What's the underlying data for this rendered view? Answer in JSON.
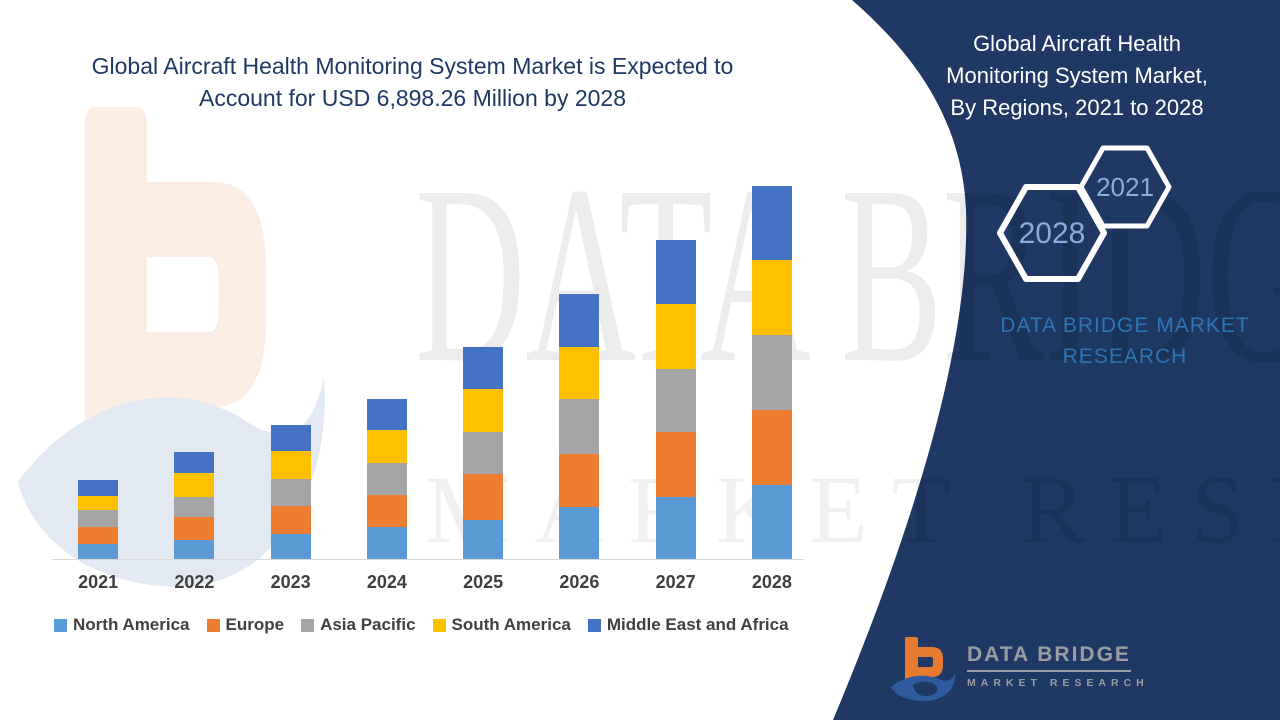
{
  "header": {
    "line1": "Global Aircraft Health Monitoring System Market is Expected to",
    "line2": "Account for USD 6,898.26 Million by 2028"
  },
  "panel": {
    "title_line1": "Global Aircraft Health",
    "title_line2": "Monitoring System Market,",
    "title_line3": "By Regions,  2021 to 2028",
    "hexagon_back_label": "2028",
    "hexagon_front_label": "2021",
    "brand_line1": "DATA BRIDGE MARKET",
    "brand_line2": "RESEARCH",
    "background_color": "#1f3864",
    "hexagon_text_color": "#8eaadb",
    "brand_text_color": "#2e75b6"
  },
  "watermark": {
    "line1": "DATA BRIDGE",
    "line2": "MARKET RESEARCH"
  },
  "footer_logo": {
    "name": "DATA BRIDGE",
    "tagline": "MARKET RESEARCH"
  },
  "chart_data": {
    "type": "bar",
    "stacked": true,
    "title": "Global Aircraft Health Monitoring System Market is Expected to Account for USD 6,898.26 Million by 2028",
    "unit": "USD Million",
    "categories": [
      "2021",
      "2022",
      "2023",
      "2024",
      "2025",
      "2026",
      "2027",
      "2028"
    ],
    "series": [
      {
        "name": "North America",
        "color": "#5B9BD5",
        "values": [
          295,
          374,
          485,
          614,
          745,
          971,
          1167,
          1382
        ]
      },
      {
        "name": "Europe",
        "color": "#ED7D31",
        "values": [
          319,
          424,
          511,
          579,
          840,
          982,
          1198,
          1383
        ]
      },
      {
        "name": "Asia Pacific",
        "color": "#A5A5A5",
        "values": [
          313,
          369,
          492,
          601,
          769,
          1014,
          1167,
          1383
        ]
      },
      {
        "name": "South America",
        "color": "#FFC000",
        "values": [
          258,
          437,
          522,
          597,
          798,
          966,
          1198,
          1383
        ]
      },
      {
        "name": "Middle East and Africa",
        "color": "#4472C4",
        "values": [
          289,
          393,
          474,
          571,
          774,
          982,
          1168,
          1369
        ]
      }
    ],
    "totals": [
      1474,
      1997,
      2484,
      2962,
      3926,
      4915,
      5898,
      6900
    ],
    "ylim": [
      0,
      6900
    ],
    "xlabel": "",
    "ylabel": "",
    "grid": false,
    "y_axis_visible": false,
    "legend_position": "bottom"
  }
}
